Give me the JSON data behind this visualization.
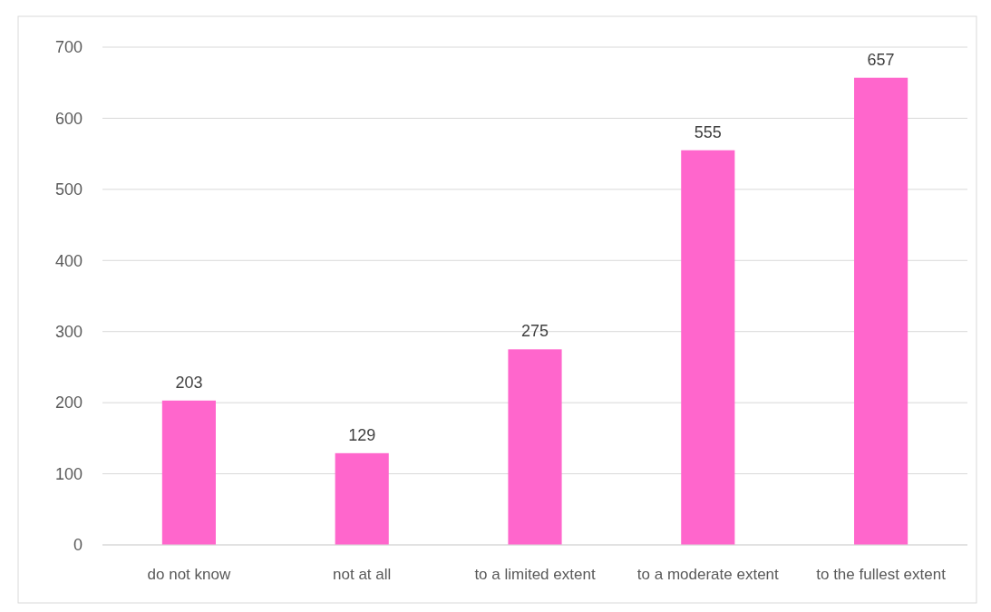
{
  "chart_data": {
    "type": "bar",
    "categories": [
      "do not know",
      "not at all",
      "to a limited extent",
      "to a moderate extent",
      "to the fullest extent"
    ],
    "values": [
      203,
      129,
      275,
      555,
      657
    ],
    "color": "#ff66cc",
    "ylim": [
      0,
      700
    ],
    "yticks": [
      0,
      100,
      200,
      300,
      400,
      500,
      600,
      700
    ],
    "grid": "y",
    "data_labels": true
  }
}
